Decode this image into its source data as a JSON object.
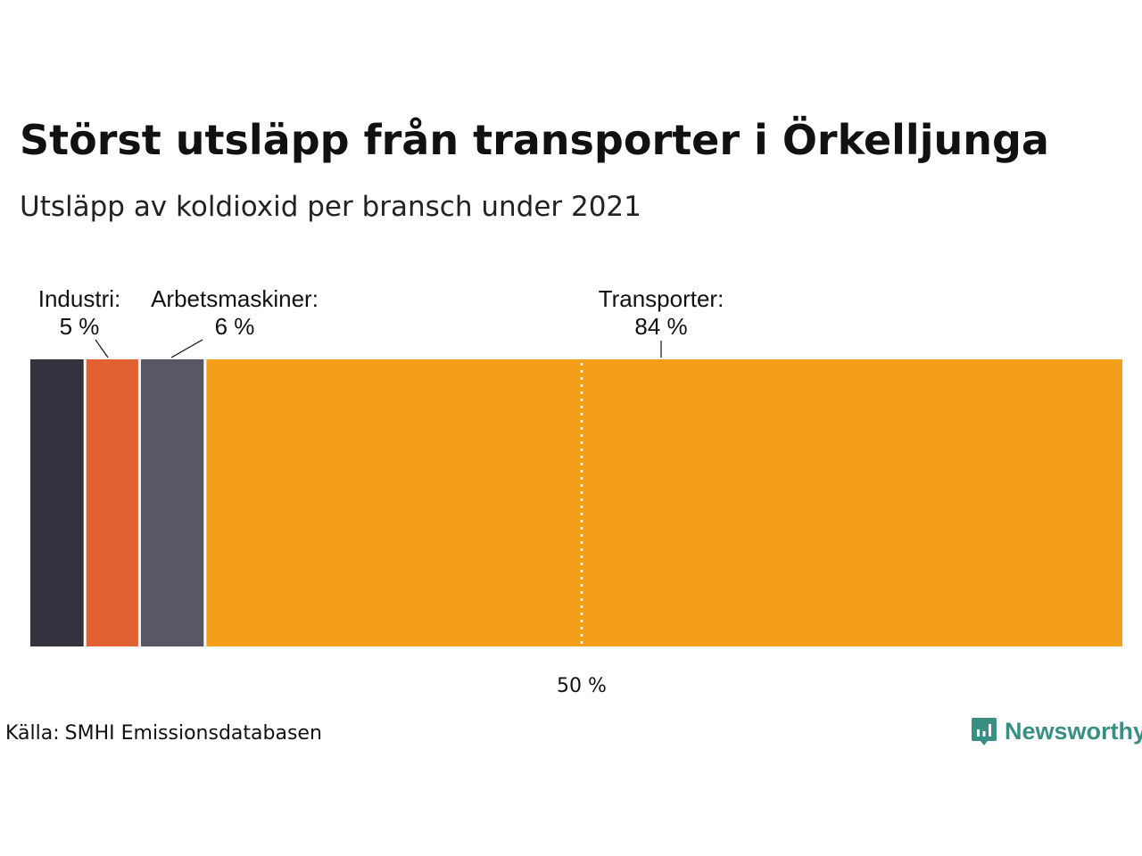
{
  "title": "Störst utsläpp från transporter i Örkelljunga",
  "subtitle": "Utsläpp av koldioxid per bransch under 2021",
  "chart_data": {
    "type": "bar",
    "orientation": "horizontal-stacked",
    "unit": "%",
    "total": 100,
    "segments": [
      {
        "name": "Unlabeled",
        "value": 5,
        "color": "#33323f",
        "label": "",
        "value_label": ""
      },
      {
        "name": "Industri",
        "value": 5,
        "color": "#e06132",
        "label": "Industri:",
        "value_label": "5 %"
      },
      {
        "name": "Arbetsmaskiner",
        "value": 6,
        "color": "#595766",
        "label": "Arbetsmaskiner:",
        "value_label": "6 %"
      },
      {
        "name": "Transporter",
        "value": 84,
        "color": "#f59e1a",
        "label": "Transporter:",
        "value_label": "84 %"
      }
    ],
    "reference_line": {
      "value": 50,
      "label": "50 %"
    }
  },
  "source": {
    "label": "Källa:",
    "text": "SMHI Emissionsdatabasen"
  },
  "brand": {
    "name": "Newsworthy",
    "icon": "newsworthy-logo-icon",
    "color": "#3a8f84"
  }
}
